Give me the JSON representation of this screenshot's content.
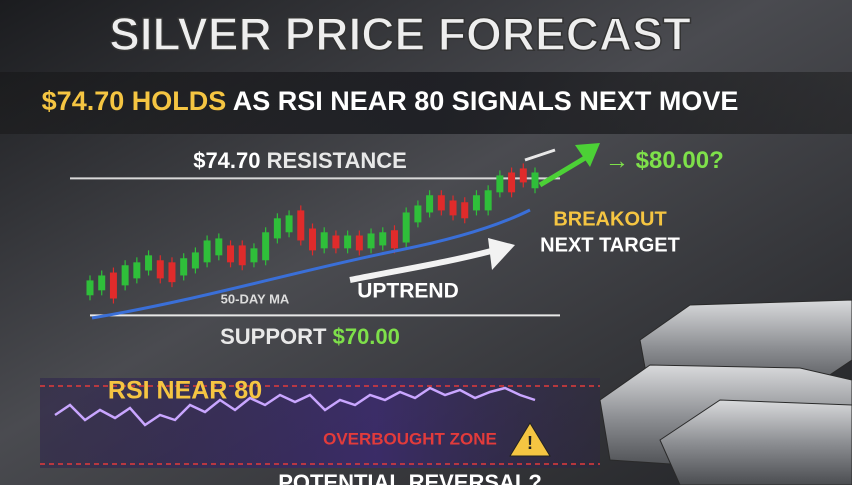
{
  "chart_data": {
    "type": "candlestick",
    "title": "SILVER PRICE FORECAST",
    "subtitle_highlight": "$74.70 HOLDS",
    "subtitle": "AS RSI NEAR 80 SIGNALS NEXT MOVE",
    "open": [
      70.69,
      70.86,
      71.47,
      71.03,
      71.27,
      71.54,
      71.89,
      71.82,
      71.37,
      71.61,
      71.82,
      72.06,
      72.4,
      72.4,
      71.82,
      71.89,
      72.64,
      72.85,
      73.6,
      72.98,
      72.3,
      72.74,
      72.3,
      72.74,
      72.3,
      72.4,
      72.92,
      72.5,
      73.19,
      73.53,
      74.12,
      73.94,
      73.88,
      73.6,
      73.6,
      74.22,
      74.9,
      75.04,
      74.36
    ],
    "close": [
      71.2,
      71.37,
      70.58,
      71.72,
      71.82,
      72.06,
      71.27,
      71.14,
      71.96,
      72.16,
      72.57,
      72.64,
      71.82,
      71.72,
      72.3,
      72.85,
      73.33,
      73.43,
      72.57,
      72.23,
      72.85,
      72.3,
      72.74,
      72.23,
      72.81,
      72.85,
      72.3,
      73.53,
      73.77,
      74.12,
      73.6,
      73.43,
      73.33,
      74.12,
      74.29,
      74.8,
      74.22,
      74.56,
      74.9
    ],
    "up_color": "#2fbf3a",
    "down_color": "#e02b2b",
    "ylim": [
      69.5,
      75.5
    ],
    "resistance": {
      "value": 74.7,
      "label": "$74.70"
    },
    "resistance_text": "RESISTANCE",
    "support": {
      "value": 70.0,
      "label": "$70.00"
    },
    "support_text": "SUPPORT",
    "target_text": "$80.00?",
    "breakout_text": "BREAKOUT",
    "next_target_text": "NEXT TARGET",
    "ma_label": "50-DAY MA",
    "trend_label": "UPTREND",
    "rsi_label": "RSI NEAR 80",
    "overbought_label": "OVERBOUGHT ZONE",
    "reversal_label": "POTENTIAL REVERSAL?"
  }
}
